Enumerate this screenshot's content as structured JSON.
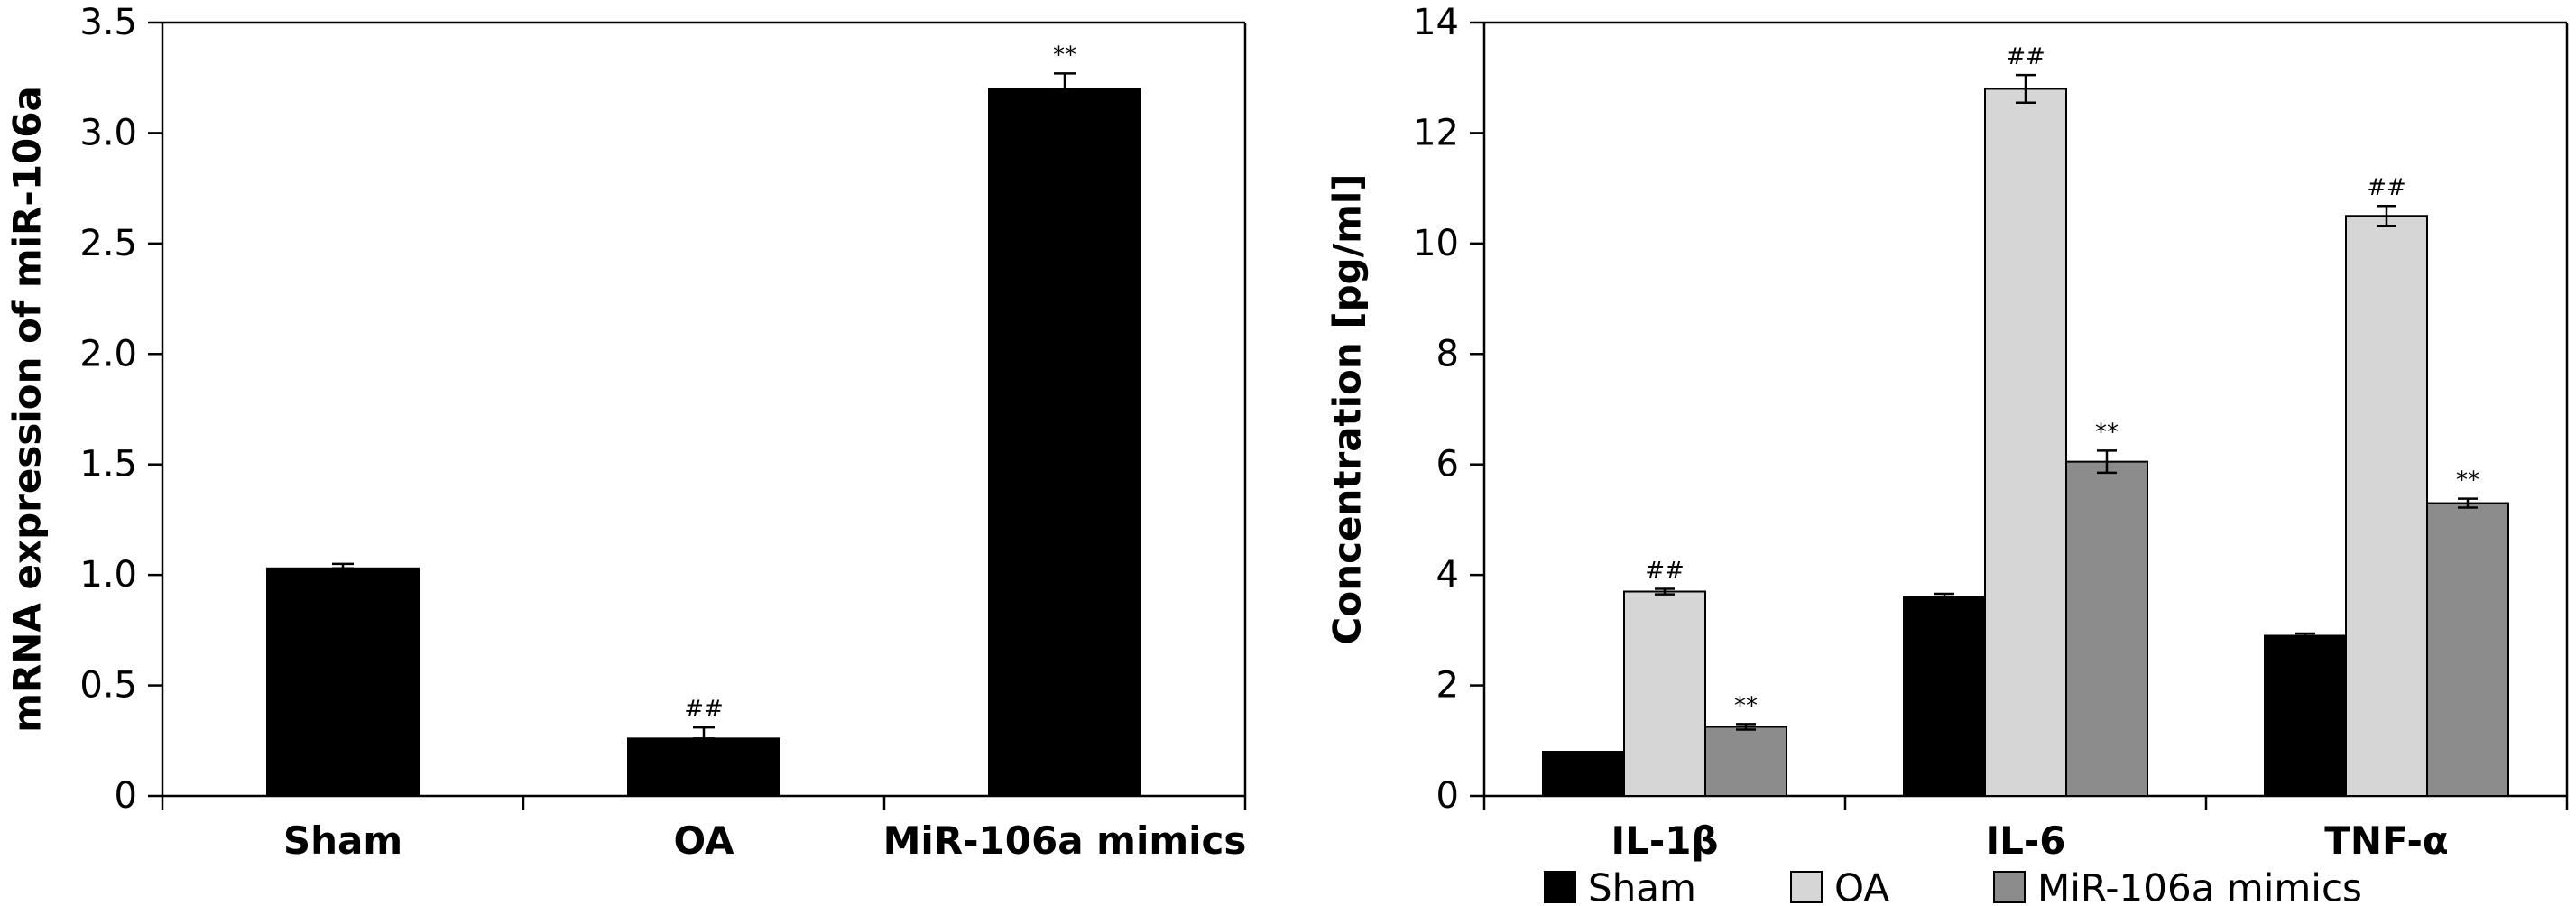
{
  "chart_data": [
    {
      "type": "bar",
      "categories": [
        "Sham",
        "OA",
        "MiR-106a mimics"
      ],
      "values": [
        1.03,
        0.26,
        3.2
      ],
      "errors": [
        0.02,
        0.05,
        0.07
      ],
      "annotations": [
        "",
        "##",
        "**"
      ],
      "title": "",
      "xlabel": "",
      "ylabel": "mRNA expression of miR-106a",
      "ylim": [
        0,
        3.5
      ],
      "yticks": [
        "0",
        "0.5",
        "1.0",
        "1.5",
        "2.0",
        "2.5",
        "3.0",
        "3.5"
      ],
      "grid": false,
      "colors": [
        "#000000"
      ]
    },
    {
      "type": "bar",
      "categories": [
        "IL-1β",
        "IL-6",
        "TNF-α"
      ],
      "series": [
        {
          "name": "Sham",
          "values": [
            0.8,
            3.6,
            2.9
          ],
          "errors": [
            0.0,
            0.06,
            0.04
          ],
          "annotations": [
            "",
            "",
            ""
          ],
          "color": "#000000"
        },
        {
          "name": "OA",
          "values": [
            3.7,
            12.8,
            10.5
          ],
          "errors": [
            0.05,
            0.25,
            0.18
          ],
          "annotations": [
            "##",
            "##",
            "##"
          ],
          "color": "#d6d6d6"
        },
        {
          "name": "MiR-106a mimics",
          "values": [
            1.25,
            6.05,
            5.3
          ],
          "errors": [
            0.05,
            0.2,
            0.08
          ],
          "annotations": [
            "**",
            "**",
            "**"
          ],
          "color": "#8c8c8c"
        }
      ],
      "title": "",
      "xlabel": "",
      "ylabel": "Concentration [pg/ml]",
      "ylim": [
        0,
        14
      ],
      "yticks": [
        "0",
        "2",
        "4",
        "6",
        "8",
        "10",
        "12",
        "14"
      ],
      "grid": false,
      "legend": "bottom"
    }
  ]
}
